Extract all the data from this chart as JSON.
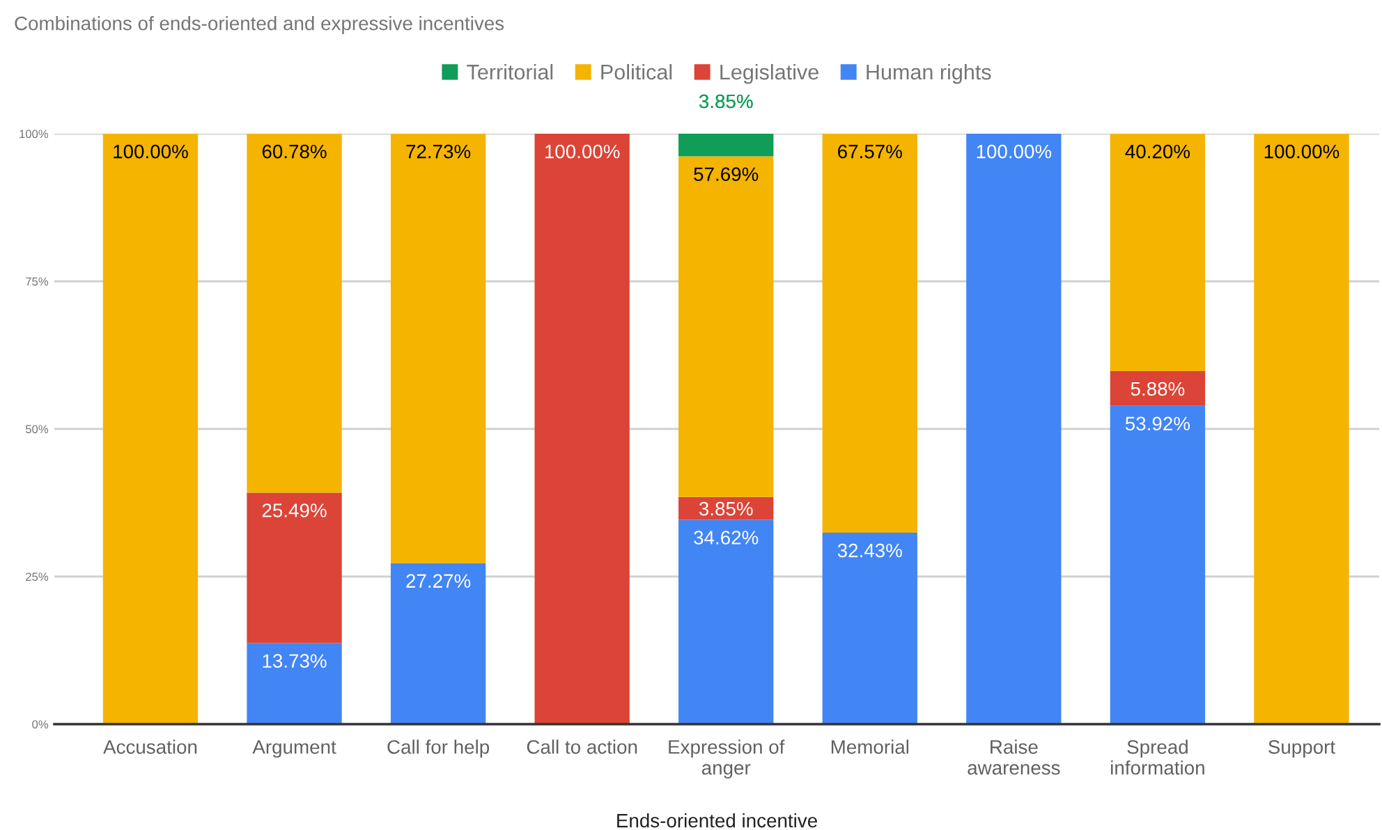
{
  "chart_data": {
    "type": "bar",
    "title": "Combinations of ends-oriented and expressive incentives",
    "xlabel": "Ends-oriented incentive",
    "categories": [
      "Accusation",
      "Argument",
      "Call for help",
      "Call to action",
      "Expression of anger",
      "Memorial",
      "Raise awareness",
      "Spread information",
      "Support"
    ],
    "series": [
      {
        "name": "Human rights",
        "color": "#4285f4",
        "values": [
          null,
          13.73,
          27.27,
          null,
          34.62,
          32.43,
          100,
          53.92,
          null
        ],
        "value_labels": [
          null,
          "13.73%",
          "27.27%",
          null,
          "34.62%",
          "32.43%",
          "100.00%",
          "53.92%",
          null
        ]
      },
      {
        "name": "Legislative",
        "color": "#db4437",
        "values": [
          null,
          25.49,
          null,
          100,
          3.85,
          null,
          null,
          5.88,
          null
        ],
        "value_labels": [
          null,
          "25.49%",
          null,
          "100.00%",
          "3.85%",
          null,
          null,
          "5.88%",
          null
        ]
      },
      {
        "name": "Political",
        "color": "#f4b400",
        "values": [
          100,
          60.78,
          72.73,
          null,
          57.69,
          67.57,
          null,
          40.2,
          100
        ],
        "value_labels": [
          "100.00%",
          "60.78%",
          "72.73%",
          null,
          "57.69%",
          "67.57%",
          null,
          "40.20%",
          "100.00%"
        ]
      },
      {
        "name": "Territorial",
        "color": "#0f9d58",
        "values": [
          null,
          null,
          null,
          null,
          3.85,
          null,
          null,
          null,
          null
        ],
        "value_labels": [
          null,
          null,
          null,
          null,
          "3.85%",
          null,
          null,
          null,
          null
        ]
      }
    ],
    "stacked": true,
    "ylim": [
      0,
      100
    ],
    "yticks": [
      {
        "value": 0,
        "label": "0%"
      },
      {
        "value": 25,
        "label": "25%"
      },
      {
        "value": 50,
        "label": "50%"
      },
      {
        "value": 75,
        "label": "75%"
      },
      {
        "value": 100,
        "label": "100%"
      }
    ],
    "grid": "y",
    "legend": "top"
  }
}
